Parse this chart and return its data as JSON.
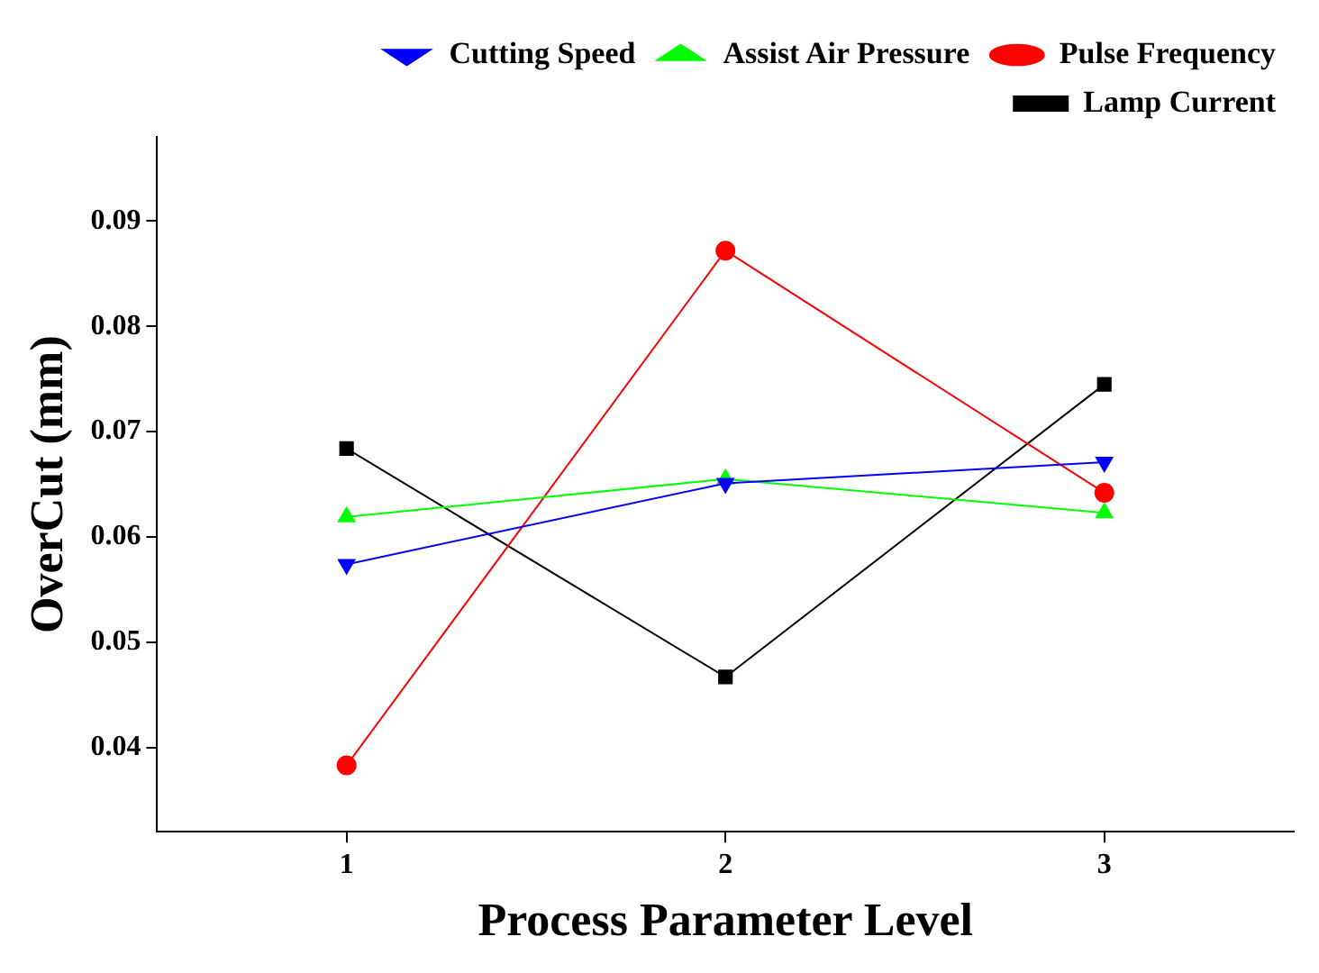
{
  "chart_data": {
    "type": "line",
    "xlabel": "Process Parameter Level",
    "ylabel": "OverCut (mm)",
    "x": [
      1,
      2,
      3
    ],
    "xlim": [
      0.5,
      3.5
    ],
    "xticks": [
      1,
      2,
      3
    ],
    "ylim": [
      0.032,
      0.098
    ],
    "yticks": [
      0.04,
      0.05,
      0.06,
      0.07,
      0.08,
      0.09
    ],
    "grid": false,
    "legend": "top right",
    "line_style": "solid",
    "series": [
      {
        "name": "Lamp Current",
        "color": "#000000",
        "marker": "square",
        "values": [
          0.0684,
          0.0467,
          0.0745
        ]
      },
      {
        "name": "Pulse Frequency",
        "color": "#ff0000",
        "marker": "circle",
        "values": [
          0.0383,
          0.0872,
          0.0642
        ]
      },
      {
        "name": "Assist Air Pressure",
        "color": "#00ff00",
        "marker": "triangle",
        "values": [
          0.0619,
          0.0655,
          0.0623
        ]
      },
      {
        "name": "Cutting Speed",
        "color": "#0000ff",
        "marker": "triangle-down",
        "values": [
          0.0574,
          0.0651,
          0.0671
        ]
      }
    ]
  }
}
